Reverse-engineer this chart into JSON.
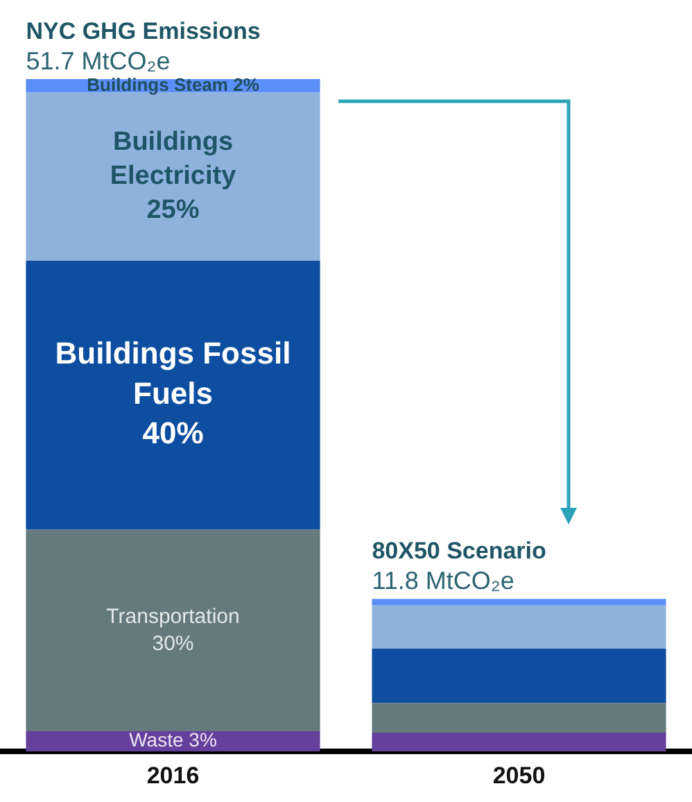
{
  "chart_data": {
    "type": "bar",
    "stacked": true,
    "grid": false,
    "legend": false,
    "tick_labels": "x",
    "ylim": [
      0,
      100
    ],
    "categories": [
      "2016",
      "2050"
    ],
    "series": [
      {
        "color": "#653f9c",
        "values": [
          3,
          2.8
        ],
        "value_labels": [
          "Waste 3%",
          null
        ]
      },
      {
        "color": "#647a7c",
        "values": [
          30,
          4.4
        ],
        "value_labels": [
          "Transportation 30%",
          null
        ]
      },
      {
        "color": "#0d4ea0",
        "values": [
          40,
          8.1
        ],
        "value_labels": [
          "Buildings Fossil Fuels 40%",
          null
        ]
      },
      {
        "color": "#8fb2dd",
        "values": [
          25,
          6.5
        ],
        "value_labels": [
          "Buildings Electricity 25%",
          null
        ]
      },
      {
        "color": "#5b8ff8",
        "values": [
          2,
          0.9
        ],
        "value_labels": [
          "Buildings Steam 2%",
          null
        ]
      }
    ],
    "annotations": [
      {
        "text": "NYC GHG Emissions",
        "x": "2016",
        "y": 100
      },
      {
        "text": "51.7 MtCO₂e",
        "x": "2016",
        "y": 100
      },
      {
        "text": "80X50 Scenario",
        "x": "2050",
        "y": 22.7
      },
      {
        "text": "11.8 MtCO₂e",
        "x": "2050",
        "y": 22.7
      }
    ]
  }
}
